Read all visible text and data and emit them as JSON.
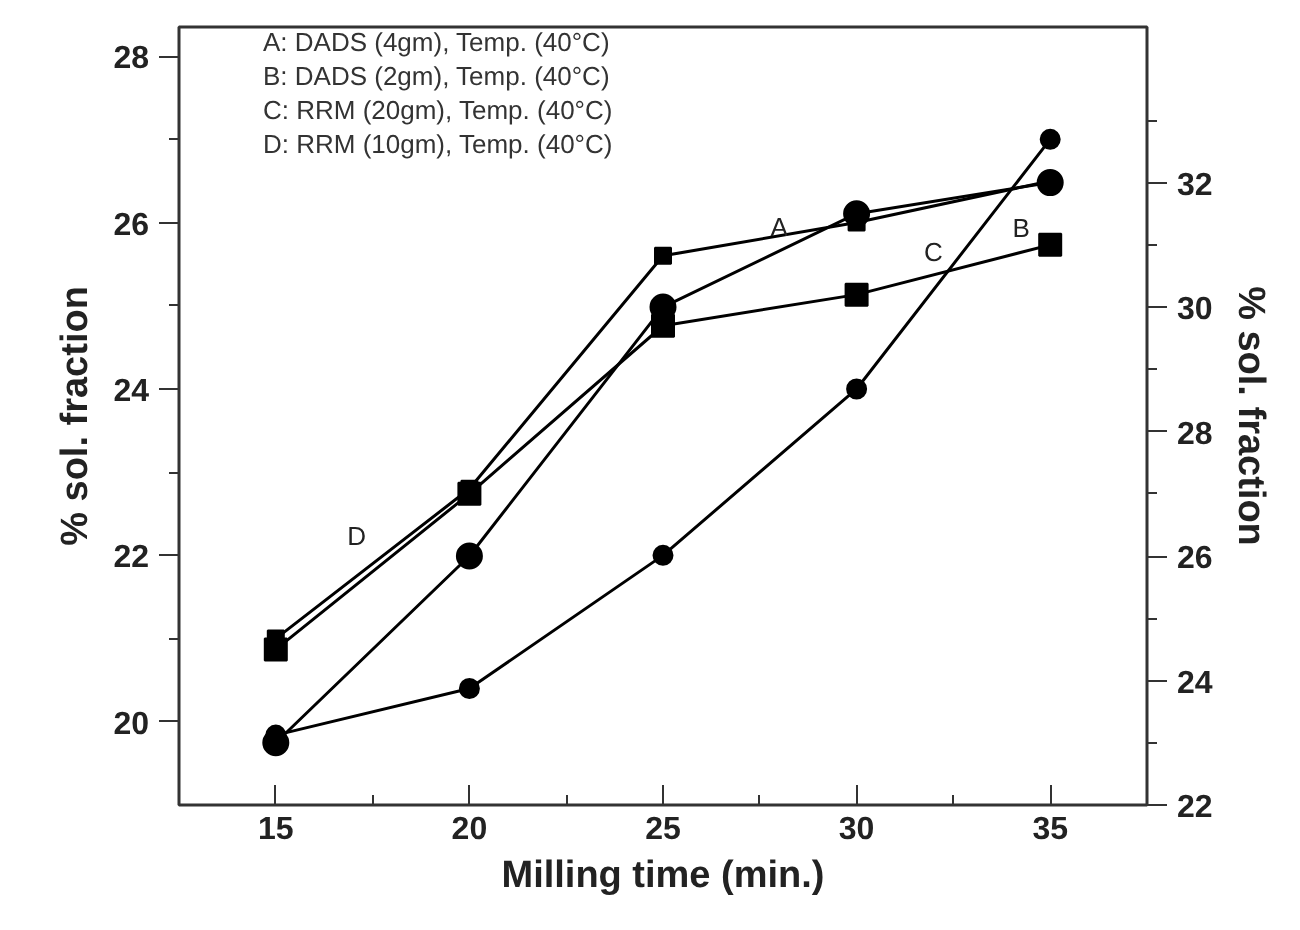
{
  "chart_data": {
    "type": "line",
    "xlabel": "Milling time (min.)",
    "ylabel": "% sol. fraction",
    "y2label": "% sol. fraction",
    "x": [
      15,
      20,
      25,
      30,
      35
    ],
    "series": [
      {
        "name": "A",
        "color": "#000000",
        "axis": "y2",
        "marker": "circle",
        "values": [
          23.0,
          26.0,
          30.0,
          31.5,
          32.0
        ]
      },
      {
        "name": "B",
        "color": "#000000",
        "axis": "y2",
        "marker": "square",
        "values": [
          24.5,
          27.0,
          29.7,
          30.2,
          31.0
        ]
      },
      {
        "name": "C",
        "color": "#000000",
        "axis": "y",
        "marker": "circle",
        "values": [
          19.84,
          20.4,
          22.0,
          24.0,
          27.0
        ]
      },
      {
        "name": "D",
        "color": "#000000",
        "axis": "y",
        "marker": "square",
        "values": [
          21.0,
          22.8,
          25.6,
          26.0,
          26.5
        ]
      }
    ],
    "xlim": [
      12.5,
      37.5
    ],
    "ylim": [
      19,
      28.35
    ],
    "y2lim": [
      22,
      34.5
    ],
    "xticks": [
      15,
      {
        "value": 17.5,
        "label": null
      },
      20,
      {
        "value": 22.5,
        "label": null
      },
      25,
      {
        "value": 27.5,
        "label": null
      },
      30,
      {
        "value": 32.5,
        "label": null
      },
      35
    ],
    "yticks": [
      20,
      {
        "value": 21,
        "label": null
      },
      22,
      {
        "value": 23,
        "label": null
      },
      24,
      {
        "value": 25,
        "label": null
      },
      26,
      {
        "value": 27,
        "label": null
      },
      28
    ],
    "y2ticks": [
      22,
      {
        "value": 23,
        "label": null
      },
      24,
      {
        "value": 25,
        "label": null
      },
      26,
      {
        "value": 27,
        "label": null
      },
      28,
      {
        "value": 29,
        "label": null
      },
      30,
      {
        "value": 31,
        "label": null
      },
      32,
      {
        "value": 33,
        "label": null
      }
    ],
    "annotations": [
      "A: DADS (4gm), Temp. (40°C)",
      "B: DADS (2gm), Temp. (40°C)",
      "C: RRM (20gm), Temp. (40°C)",
      "D: RRM (10gm), Temp. (40°C)"
    ],
    "grid": false,
    "line_style": "solid"
  }
}
